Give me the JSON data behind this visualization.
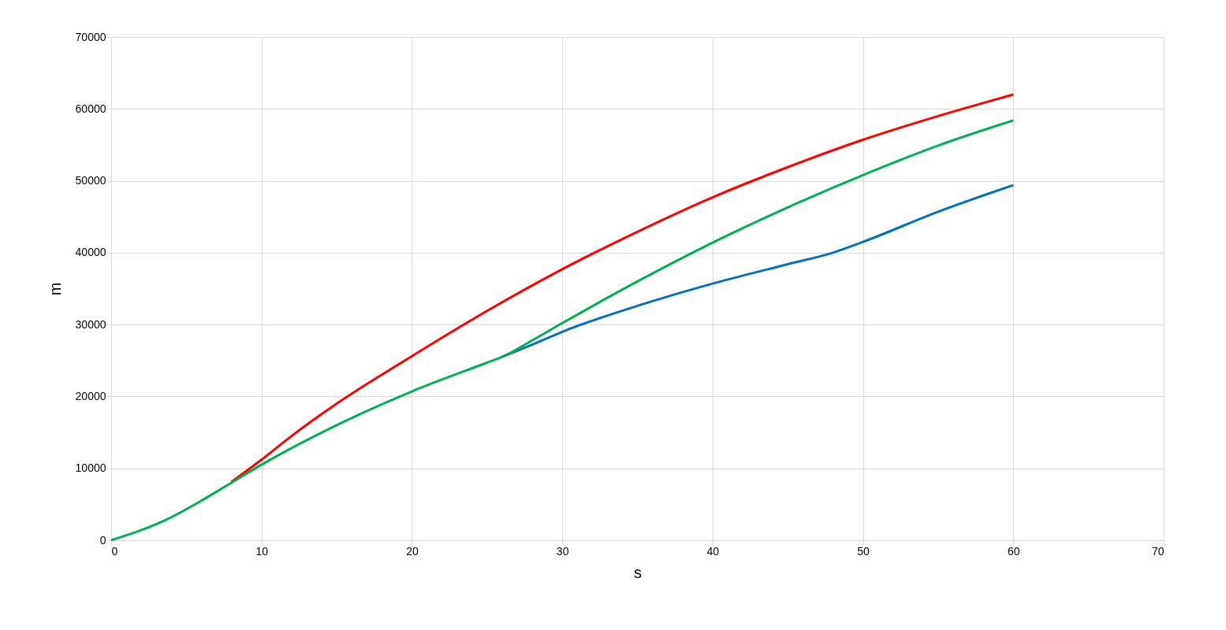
{
  "chart_data": {
    "type": "line",
    "xlabel": "s",
    "ylabel": "m",
    "xlim": [
      0,
      70
    ],
    "ylim": [
      0,
      70000
    ],
    "xticks": [
      0,
      10,
      20,
      30,
      40,
      50,
      60,
      70
    ],
    "yticks": [
      0,
      10000,
      20000,
      30000,
      40000,
      50000,
      60000,
      70000
    ],
    "grid": true,
    "marker": "none",
    "line_style": "solid",
    "series": [
      {
        "color": "#0070c0",
        "x": [
          26,
          28,
          30,
          35,
          40,
          45,
          48,
          50,
          55,
          60
        ],
        "values": [
          25500,
          27200,
          29000,
          32600,
          35700,
          38400,
          40000,
          41500,
          45700,
          49400
        ]
      },
      {
        "color": "#ff0000",
        "x": [
          8,
          10,
          12,
          15,
          20,
          25,
          30,
          35,
          40,
          45,
          50,
          55,
          60
        ],
        "values": [
          8100,
          11200,
          14500,
          19000,
          25600,
          31900,
          37700,
          42900,
          47700,
          51900,
          55700,
          59000,
          62000
        ]
      },
      {
        "color": "#00b050",
        "x": [
          0,
          2,
          4,
          6,
          8,
          10,
          15,
          20,
          25,
          26,
          28,
          30,
          35,
          40,
          45,
          50,
          55,
          60
        ],
        "values": [
          0,
          1400,
          3200,
          5500,
          8000,
          10500,
          16000,
          20700,
          24700,
          25500,
          27800,
          30200,
          36000,
          41400,
          46300,
          50800,
          54900,
          58400
        ]
      }
    ]
  }
}
